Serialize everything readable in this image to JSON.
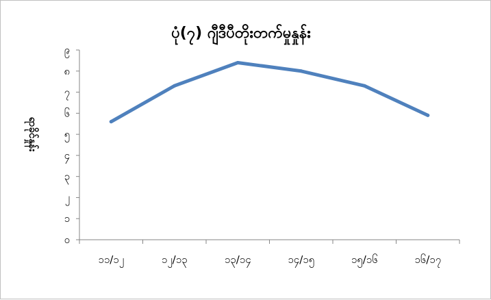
{
  "chart_data": {
    "type": "line",
    "title": "ပုံ(၇) ဂျီဒီပီတိုးတက်မှုနှုန်း",
    "xlabel": "",
    "ylabel": "ရာခိုင်နှုန်း",
    "categories": [
      "၁၁/၁၂",
      "၁၂/၁၃",
      "၁၃/၁၄",
      "၁၄/၁၅",
      "၁၅/၁၆",
      "၁၆/၁၇"
    ],
    "y_ticks": [
      "၀",
      "၁",
      "၂",
      "၃",
      "၄",
      "၅",
      "၆",
      "၇",
      "၈",
      "၉"
    ],
    "ylim": [
      0,
      9
    ],
    "series": [
      {
        "values": [
          5.6,
          7.3,
          8.4,
          8.0,
          7.3,
          5.9
        ]
      }
    ],
    "grid": false,
    "legend": "none",
    "line_color": "#4f81bd"
  }
}
